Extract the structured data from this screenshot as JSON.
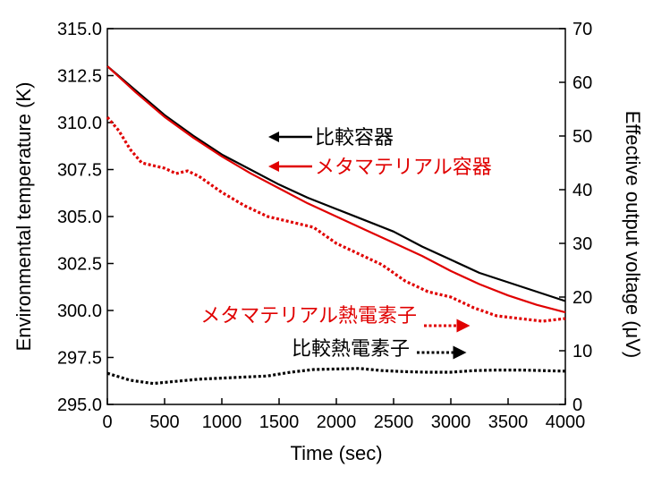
{
  "chart_data": {
    "type": "line",
    "xlabel": "Time (sec)",
    "ylabel_left": "Environmental temperature (K)",
    "ylabel_right": "Effective output voltage (μV)",
    "xlim": [
      0,
      4000
    ],
    "ylim_left": [
      295.0,
      315.0
    ],
    "ylim_right": [
      0,
      70
    ],
    "x_ticks": [
      "0",
      "500",
      "1000",
      "1500",
      "2000",
      "2500",
      "3000",
      "3500",
      "4000"
    ],
    "y_left_ticks": [
      "295.0",
      "297.5",
      "300.0",
      "302.5",
      "305.0",
      "307.5",
      "310.0",
      "312.5",
      "315.0"
    ],
    "y_right_ticks": [
      "0",
      "10",
      "20",
      "30",
      "40",
      "50",
      "60",
      "70"
    ],
    "grid": false,
    "series": [
      {
        "name": "比較容器",
        "axis": "left",
        "color": "#000000",
        "style": "solid",
        "x": [
          0,
          250,
          500,
          750,
          1000,
          1250,
          1500,
          1750,
          2000,
          2250,
          2500,
          2750,
          3000,
          3250,
          3500,
          3750,
          4000
        ],
        "y": [
          313.0,
          311.7,
          310.4,
          309.3,
          308.3,
          307.5,
          306.7,
          306.0,
          305.4,
          304.8,
          304.2,
          303.4,
          302.7,
          302.0,
          301.5,
          301.0,
          300.5
        ]
      },
      {
        "name": "メタマテリアル容器",
        "axis": "left",
        "color": "#e00000",
        "style": "solid",
        "x": [
          0,
          250,
          500,
          750,
          1000,
          1250,
          1500,
          1750,
          2000,
          2250,
          2500,
          2750,
          3000,
          3250,
          3500,
          3750,
          4000
        ],
        "y": [
          313.0,
          311.6,
          310.3,
          309.2,
          308.2,
          307.3,
          306.5,
          305.7,
          305.0,
          304.3,
          303.6,
          302.9,
          302.1,
          301.4,
          300.8,
          300.3,
          299.9
        ]
      },
      {
        "name": "メタマテリアル熱電素子",
        "axis": "right",
        "color": "#e00000",
        "style": "dotted",
        "x": [
          0,
          100,
          200,
          300,
          400,
          500,
          600,
          700,
          800,
          900,
          1000,
          1200,
          1400,
          1600,
          1800,
          2000,
          2200,
          2400,
          2600,
          2800,
          3000,
          3200,
          3400,
          3600,
          3800,
          4000
        ],
        "y": [
          53.5,
          51.0,
          47.5,
          45.0,
          44.5,
          44.0,
          43.0,
          43.5,
          42.5,
          41.0,
          39.5,
          37.0,
          35.0,
          34.0,
          33.0,
          30.0,
          28.0,
          26.0,
          23.0,
          21.0,
          20.0,
          18.0,
          16.5,
          16.0,
          15.5,
          16.0
        ]
      },
      {
        "name": "比較熱電素子",
        "axis": "right",
        "color": "#000000",
        "style": "dotted",
        "x": [
          0,
          200,
          400,
          600,
          800,
          1000,
          1200,
          1400,
          1600,
          1800,
          2000,
          2200,
          2400,
          2600,
          2800,
          3000,
          3200,
          3400,
          3600,
          3800,
          4000
        ],
        "y": [
          5.8,
          4.5,
          3.9,
          4.3,
          4.7,
          4.9,
          5.1,
          5.3,
          6.0,
          6.5,
          6.6,
          6.7,
          6.3,
          6.1,
          6.0,
          6.0,
          6.3,
          6.4,
          6.4,
          6.3,
          6.2
        ]
      }
    ],
    "annotations": [
      {
        "text": "比較容器",
        "color": "#000000",
        "arrow": "left"
      },
      {
        "text": "メタマテリアル容器",
        "color": "#e00000",
        "arrow": "left"
      },
      {
        "text": "メタマテリアル熱電素子",
        "color": "#e00000",
        "arrow": "right-dotted"
      },
      {
        "text": "比較熱電素子",
        "color": "#000000",
        "arrow": "right-dotted"
      }
    ]
  }
}
